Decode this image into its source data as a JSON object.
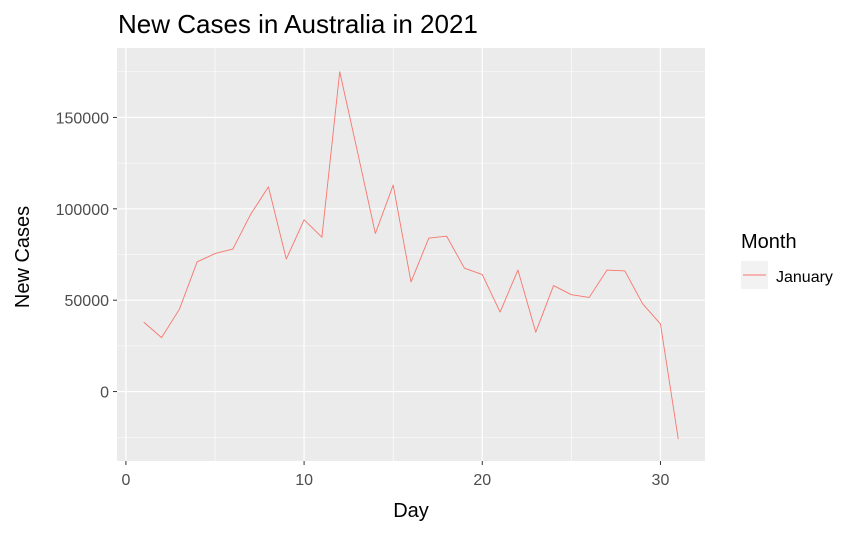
{
  "chart_data": {
    "type": "line",
    "title": "New Cases in Australia in 2021",
    "xlabel": "Day",
    "ylabel": "New Cases",
    "xlim": [
      -0.5,
      32.5
    ],
    "ylim": [
      -38000,
      188000
    ],
    "x_ticks": [
      0,
      10,
      20,
      30
    ],
    "x_tick_labels": [
      "0",
      "10",
      "20",
      "30"
    ],
    "y_ticks": [
      0,
      50000,
      100000,
      150000
    ],
    "y_tick_labels": [
      "0",
      "50000",
      "100000",
      "150000"
    ],
    "grid": true,
    "legend": {
      "title": "Month",
      "position": "right"
    },
    "series": [
      {
        "name": "January",
        "color": "#F8766D",
        "x": [
          1,
          2,
          3,
          4,
          5,
          6,
          7,
          8,
          9,
          10,
          11,
          12,
          13,
          14,
          15,
          16,
          17,
          18,
          19,
          20,
          21,
          22,
          23,
          24,
          25,
          26,
          27,
          28,
          29,
          30,
          31
        ],
        "values": [
          38000,
          29500,
          45000,
          71000,
          75500,
          78000,
          97000,
          112000,
          72500,
          94000,
          84500,
          175000,
          131000,
          86500,
          113000,
          60000,
          84000,
          85000,
          67500,
          64000,
          43500,
          66500,
          32500,
          58000,
          53000,
          51500,
          66500,
          66000,
          48000,
          37000,
          -26000
        ]
      }
    ]
  }
}
